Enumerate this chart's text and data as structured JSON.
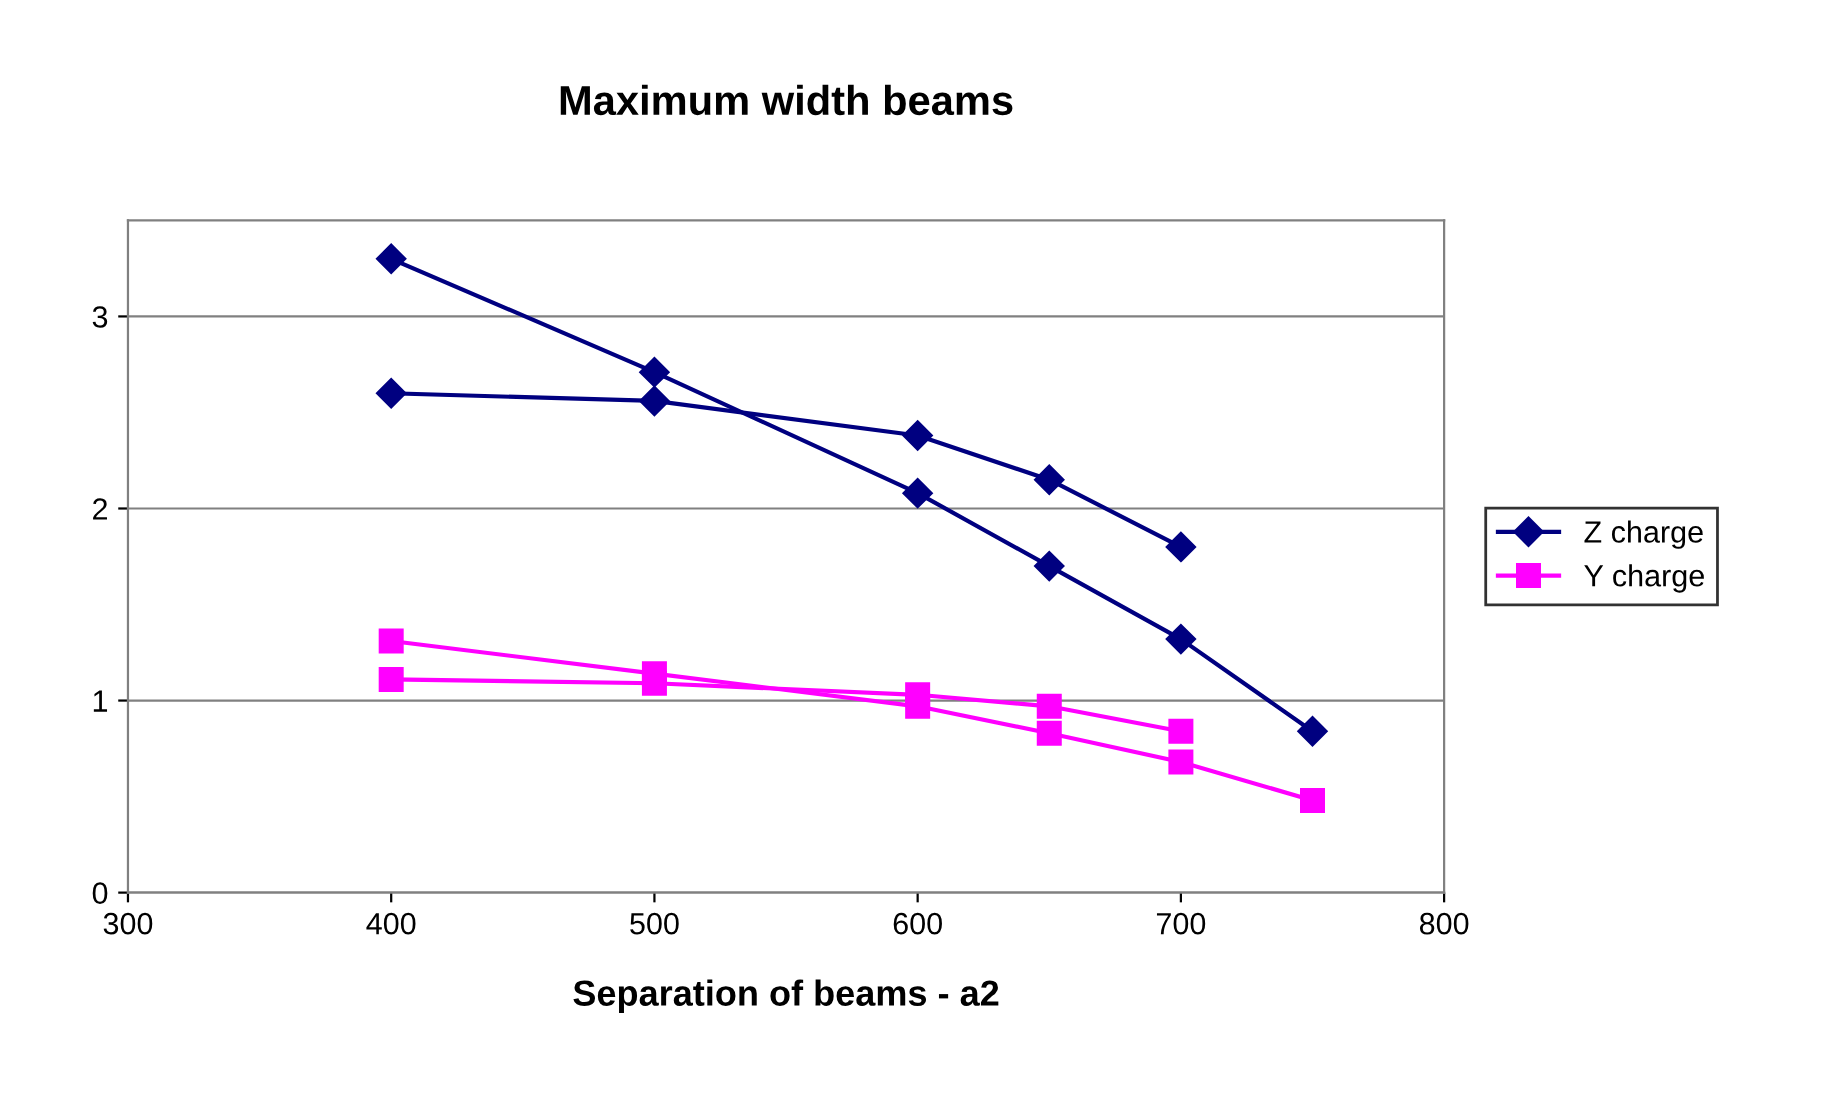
{
  "chart_data": {
    "type": "line",
    "title": "Maximum width beams",
    "xlabel": "Separation of beams - a2",
    "xlim": [
      300,
      800
    ],
    "xticks": [
      300,
      400,
      500,
      600,
      700,
      800
    ],
    "ylim": [
      0,
      3.5
    ],
    "yticks": [
      0,
      1,
      2,
      3
    ],
    "grid": "y",
    "legend": "right",
    "series": [
      {
        "name": "Z charge",
        "color": "#000080",
        "marker": "diamond",
        "x": [
          400,
          500,
          600,
          650,
          700,
          750
        ],
        "values": [
          3.3,
          2.71,
          2.08,
          1.7,
          1.32,
          0.84
        ]
      },
      {
        "color": "#000080",
        "marker": "diamond",
        "x": [
          400,
          500,
          600,
          650,
          700
        ],
        "values": [
          2.6,
          2.56,
          2.38,
          2.15,
          1.8
        ]
      },
      {
        "name": "Y charge",
        "color": "#ff00ff",
        "marker": "square",
        "x": [
          400,
          500,
          600,
          650,
          700,
          750
        ],
        "values": [
          1.31,
          1.14,
          0.97,
          0.83,
          0.68,
          0.48
        ]
      },
      {
        "color": "#ff00ff",
        "marker": "square",
        "x": [
          400,
          500,
          600,
          650,
          700
        ],
        "values": [
          1.11,
          1.09,
          1.03,
          0.97,
          0.84
        ]
      }
    ]
  }
}
